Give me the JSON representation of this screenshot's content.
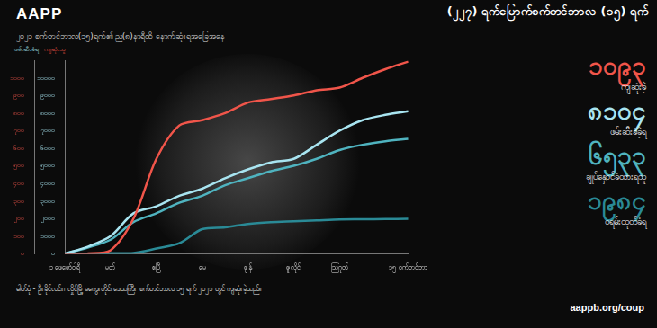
{
  "brand": "AAPP",
  "caption": "ဓါတ်ပုံ - ဦးခိုင်လင်း၊ လှိုင်မြို့ မကွေးတိုင်းဒေသကြီး စက်တင်ဘာလ ၁၅ ရက် ၂၀၂၁ တွင် ကျဆုံးခဲ့သည်။",
  "source": "aappb.org/coup",
  "chart_data": {
    "type": "line",
    "title": "(၂၂၇) ရက်မြောက်စက်တင်ဘာလ (၁၅) ရက်",
    "subtitle": "၂၀၂၁ စက်တင်ဘာလ(၁၅)ရက်၏ ည(၈)နာရီထိ နောက်ဆုံးရအခြေအနေ",
    "ylabel": "ဖမ်းဆီးခံရ",
    "y2label": "ကျဆုံးသူ",
    "categories": [
      "၁ ဖေဖော်ဝါရီ",
      null,
      "မတ်",
      null,
      "ဧပြီ",
      null,
      "မေ",
      null,
      "ဇွန်",
      null,
      "ဇူလိုင်",
      null,
      "ဩဂုတ်",
      null,
      null,
      "၁၅ စက်တင်ဘာ"
    ],
    "series": [
      {
        "name": "ကျဆုံးခဲ့",
        "color": "#f0554a",
        "axis": "y2",
        "values": [
          0,
          2,
          20,
          200,
          540,
          730,
          760,
          800,
          860,
          880,
          900,
          930,
          945,
          1000,
          1050,
          1093
        ],
        "value_labels": [
          null,
          null,
          null,
          null,
          null,
          null,
          null,
          null,
          null,
          null,
          null,
          null,
          null,
          null,
          null,
          "၁၀၉၃"
        ]
      },
      {
        "name": "ဖမ်းဆီးခံခဲ့ရ",
        "color": "#a8e4f0",
        "values": [
          0,
          400,
          1000,
          2300,
          2700,
          3300,
          3700,
          4300,
          4800,
          5200,
          5400,
          6200,
          7000,
          7600,
          7900,
          8104
        ],
        "value_labels": [
          null,
          null,
          null,
          null,
          null,
          null,
          null,
          null,
          null,
          null,
          null,
          null,
          null,
          null,
          null,
          "၈၁၀၄"
        ]
      },
      {
        "name": "ချုပ်နှောင်ခံထားရသူ",
        "color": "#4fb3bf",
        "values": [
          0,
          350,
          800,
          1800,
          2300,
          2900,
          3300,
          3900,
          4300,
          4700,
          5000,
          5400,
          5900,
          6200,
          6400,
          6533
        ],
        "value_labels": [
          null,
          null,
          null,
          null,
          null,
          null,
          null,
          null,
          null,
          null,
          null,
          null,
          null,
          null,
          null,
          "၆၅၃၃"
        ]
      },
      {
        "name": "ဝရမ်းထုတ်ခံရ",
        "color": "#2a8a96",
        "values": [
          0,
          0,
          30,
          50,
          300,
          600,
          1400,
          1500,
          1700,
          1800,
          1850,
          1900,
          1950,
          1960,
          1975,
          1984
        ],
        "value_labels": [
          null,
          null,
          null,
          null,
          null,
          null,
          null,
          null,
          null,
          null,
          null,
          null,
          null,
          null,
          null,
          "၁၉၈၄"
        ]
      }
    ],
    "ylim": [
      0,
      11000
    ],
    "yticks": [
      {
        "value": 0,
        "label": "၀"
      },
      {
        "value": 1000,
        "label": "၁၀၀၀"
      },
      {
        "value": 2000,
        "label": "၂၀၀၀"
      },
      {
        "value": 3000,
        "label": "၃၀၀၀"
      },
      {
        "value": 4000,
        "label": "၄၀၀၀"
      },
      {
        "value": 5000,
        "label": "၅၀၀၀"
      },
      {
        "value": 6000,
        "label": "၆၀၀၀"
      },
      {
        "value": 7000,
        "label": "၇၀၀၀"
      },
      {
        "value": 8000,
        "label": "၈၀၀၀"
      },
      {
        "value": 9000,
        "label": "၉၀၀၀"
      },
      {
        "value": 10000,
        "label": "၁၀၀၀၀"
      }
    ],
    "y2lim": [
      0,
      1100
    ],
    "y2ticks": [
      {
        "value": 0,
        "label": "၀"
      },
      {
        "value": 100,
        "label": "၁၀၀"
      },
      {
        "value": 200,
        "label": "၂၀၀"
      },
      {
        "value": 300,
        "label": "၃၀၀"
      },
      {
        "value": 400,
        "label": "၄၀၀"
      },
      {
        "value": 500,
        "label": "၅၀၀"
      },
      {
        "value": 600,
        "label": "၆၀၀"
      },
      {
        "value": 700,
        "label": "၇၀၀"
      },
      {
        "value": 800,
        "label": "၈၀၀"
      },
      {
        "value": 900,
        "label": "၉၀၀"
      },
      {
        "value": 1000,
        "label": "၁၀၀၀"
      }
    ],
    "grid": false,
    "data_labels": true,
    "marker": "none",
    "line_style": "solid"
  }
}
